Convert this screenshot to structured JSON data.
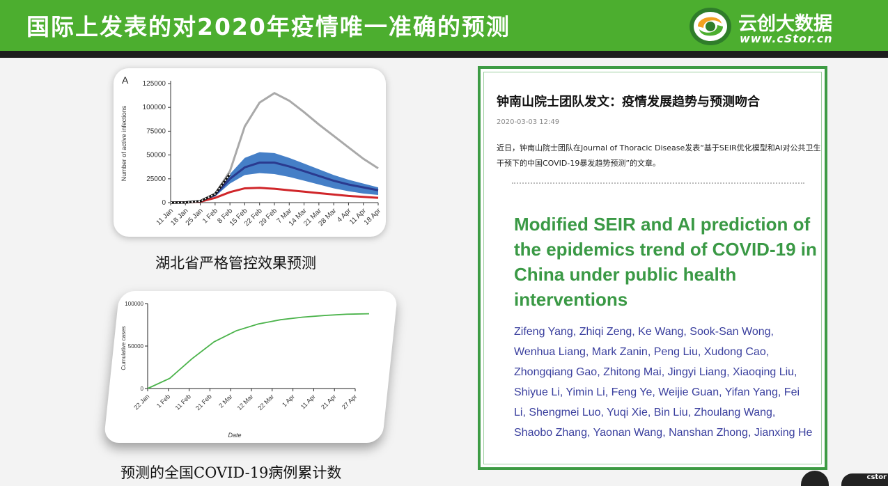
{
  "header": {
    "title": "国际上发表的对2020年疫情唯一准确的预测",
    "logo_name": "云创大数据",
    "logo_url": "www.cStor.cn",
    "bg_color": "#4cae2f"
  },
  "chart1": {
    "caption": "湖北省严格管控效果预测",
    "chart_data": {
      "type": "line",
      "panel_label": "A",
      "ylabel": "Number of active infections",
      "yticks": [
        "0",
        "25000",
        "50000",
        "75000",
        "100000",
        "125000"
      ],
      "ylim": [
        0,
        125000
      ],
      "categories": [
        "11 Jan",
        "18 Jan",
        "25 Jan",
        "1 Feb",
        "8 Feb",
        "15 Feb",
        "22 Feb",
        "29 Feb",
        "7 Mar",
        "14 Mar",
        "21 Mar",
        "28 Mar",
        "4 Apr",
        "11 Apr",
        "18 Apr"
      ],
      "series": [
        {
          "color": "#a9a9a9",
          "values": [
            0,
            200,
            1500,
            9000,
            33000,
            80000,
            105000,
            115000,
            107000,
            95000,
            82000,
            70000,
            58000,
            46000,
            36000
          ]
        },
        {
          "color": "#2a3a8f",
          "band_color": "#3b78c4",
          "values": [
            0,
            200,
            1500,
            8000,
            25000,
            37000,
            42000,
            42000,
            38000,
            33000,
            28000,
            23000,
            19000,
            16000,
            13000
          ],
          "band_upper": [
            0,
            250,
            1800,
            10000,
            30000,
            47000,
            53000,
            52000,
            47000,
            41000,
            35000,
            29000,
            24000,
            20000,
            16000
          ],
          "band_lower": [
            0,
            150,
            1200,
            6500,
            20000,
            29000,
            31000,
            30000,
            27000,
            23000,
            19000,
            15000,
            12000,
            9500,
            8000
          ]
        },
        {
          "color": "#d0262a",
          "values": [
            0,
            150,
            1000,
            5000,
            11000,
            15000,
            15500,
            14500,
            13000,
            11500,
            10000,
            8500,
            7000,
            6000,
            5000
          ]
        },
        {
          "color": "#111111",
          "style": "dotted",
          "values": [
            0,
            200,
            1500,
            9000,
            30000,
            null,
            null,
            null,
            null,
            null,
            null,
            null,
            null,
            null,
            null
          ]
        }
      ]
    }
  },
  "chart2": {
    "caption": "预测的全国COVID-19病例累计数",
    "chart_data": {
      "type": "line",
      "xlabel": "Date",
      "ylabel": "Cumulative cases",
      "yticks": [
        "0",
        "50000",
        "100000"
      ],
      "ylim": [
        0,
        100000
      ],
      "categories": [
        "22 Jan",
        "1 Feb",
        "11 Feb",
        "21 Feb",
        "2 Mar",
        "12 Mar",
        "22 Mar",
        "1 Apr",
        "11 Apr",
        "21 Apr",
        "27 Apr"
      ],
      "series": [
        {
          "color": "#4bb34b",
          "values": [
            0,
            12000,
            35000,
            55000,
            68000,
            76000,
            81000,
            84000,
            86000,
            87500,
            88000
          ]
        }
      ]
    }
  },
  "article": {
    "headline": "钟南山院士团队发文：疫情发展趋势与预测吻合",
    "date": "2020-03-03 12:49",
    "body": "近日，钟南山院士团队在Journal of Thoracic Disease发表“基于SEIR优化模型和AI对公共卫生干预下的中国COVID-19暴发趋势预测”的文章。",
    "paper_title": "Modified SEIR and AI prediction of the epidemics trend of COVID-19 in China under public health interventions",
    "authors": "Zifeng Yang, Zhiqi Zeng, Ke Wang, Sook-San Wong, Wenhua Liang, Mark Zanin, Peng Liu, Xudong Cao, Zhongqiang Gao, Zhitong Mai, Jingyi Liang, Xiaoqing Liu, Shiyue Li, Yimin Li, Feng Ye, Weijie Guan, Yifan Yang, Fei Li, Shengmei Luo, Yuqi Xie, Bin Liu, Zhoulang Wang, Shaobo Zhang, Yaonan Wang, Nanshan Zhong, Jianxing He",
    "border_color": "#3d9b44"
  },
  "footer": {
    "corner_text": "cstor"
  }
}
